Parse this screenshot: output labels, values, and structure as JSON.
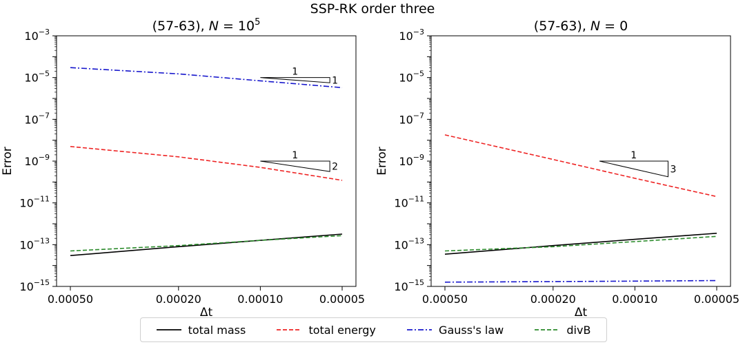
{
  "figure": {
    "suptitle": "SSP-RK order three"
  },
  "styles": {
    "total mass": {
      "color": "#000000",
      "dash": ""
    },
    "total energy": {
      "color": "#ee2222",
      "dash": "6,3"
    },
    "Gauss's law": {
      "color": "#1515cc",
      "dash": "8,3,2,3"
    },
    "divB": {
      "color": "#2a8a2a",
      "dash": "6,3"
    }
  },
  "legend": {
    "placement": "bottom-center",
    "entries": [
      "total mass",
      "total energy",
      "Gauss's law",
      "divB"
    ]
  },
  "chart_data": [
    {
      "type": "line",
      "title": "(57-63), N = 10^5",
      "title_parts": {
        "prefix": "(57-63), ",
        "var": "N",
        "eq": " = ",
        "base": "10",
        "exp": "5"
      },
      "xlabel": "Δt",
      "ylabel": "Error",
      "xscale": "log",
      "yscale": "log",
      "x_reversed": true,
      "xlim": [
        0.0005,
        5e-05
      ],
      "ylim": [
        1e-15,
        0.001
      ],
      "xticks": [
        "0.00050",
        "0.00020",
        "0.00010",
        "0.00005"
      ],
      "xtick_values": [
        0.0005,
        0.0002,
        0.0001,
        5e-05
      ],
      "ytick_exponents": [
        -15,
        -13,
        -11,
        -9,
        -7,
        -5,
        -3
      ],
      "grid": false,
      "x": [
        0.0005,
        0.0002,
        0.0001,
        5e-05
      ],
      "series": [
        {
          "name": "total mass",
          "values": [
            3e-14,
            8e-14,
            1.6e-13,
            3.2e-13
          ]
        },
        {
          "name": "total energy",
          "values": [
            5e-09,
            1.6e-09,
            5e-10,
            1.2e-10
          ]
        },
        {
          "name": "Gauss's law",
          "values": [
            3e-05,
            1.5e-05,
            7e-06,
            3.3e-06
          ]
        },
        {
          "name": "divB",
          "values": [
            5e-14,
            9e-14,
            1.6e-13,
            2.7e-13
          ]
        }
      ],
      "slope_triangles": [
        {
          "x_from": 0.0001,
          "x_to": 5.55e-05,
          "y": 1e-05,
          "rise_decades": 0.25,
          "run_label": "1",
          "rise_label": "1"
        },
        {
          "x_from": 0.0001,
          "x_to": 5.55e-05,
          "y": 1e-09,
          "rise_decades": 0.5,
          "run_label": "1",
          "rise_label": "2"
        }
      ]
    },
    {
      "type": "line",
      "title": "(57-63), N = 0",
      "title_parts": {
        "prefix": "(57-63), ",
        "var": "N",
        "eq": " = ",
        "base": "0",
        "exp": ""
      },
      "xlabel": "Δt",
      "ylabel": "Error",
      "xscale": "log",
      "yscale": "log",
      "x_reversed": true,
      "xlim": [
        0.0005,
        5e-05
      ],
      "ylim": [
        1e-15,
        0.001
      ],
      "xticks": [
        "0.00050",
        "0.00020",
        "0.00010",
        "0.00005"
      ],
      "xtick_values": [
        0.0005,
        0.0002,
        0.0001,
        5e-05
      ],
      "ytick_exponents": [
        -15,
        -13,
        -11,
        -9,
        -7,
        -5,
        -3
      ],
      "grid": false,
      "x": [
        0.0005,
        0.0002,
        0.0001,
        5e-05
      ],
      "series": [
        {
          "name": "total mass",
          "values": [
            3.5e-14,
            9e-14,
            1.8e-13,
            3.5e-13
          ]
        },
        {
          "name": "total energy",
          "values": [
            1.8e-08,
            1.2e-09,
            1.5e-10,
            2e-11
          ]
        },
        {
          "name": "Gauss's law",
          "values": [
            1.6e-15,
            1.7e-15,
            1.8e-15,
            1.9e-15
          ]
        },
        {
          "name": "divB",
          "values": [
            5e-14,
            8e-14,
            1.4e-13,
            2.5e-13
          ]
        }
      ],
      "slope_triangles": [
        {
          "x_from": 0.000135,
          "x_to": 7.55e-05,
          "y": 1e-09,
          "rise_decades": 0.75,
          "run_label": "1",
          "rise_label": "3"
        }
      ]
    }
  ]
}
